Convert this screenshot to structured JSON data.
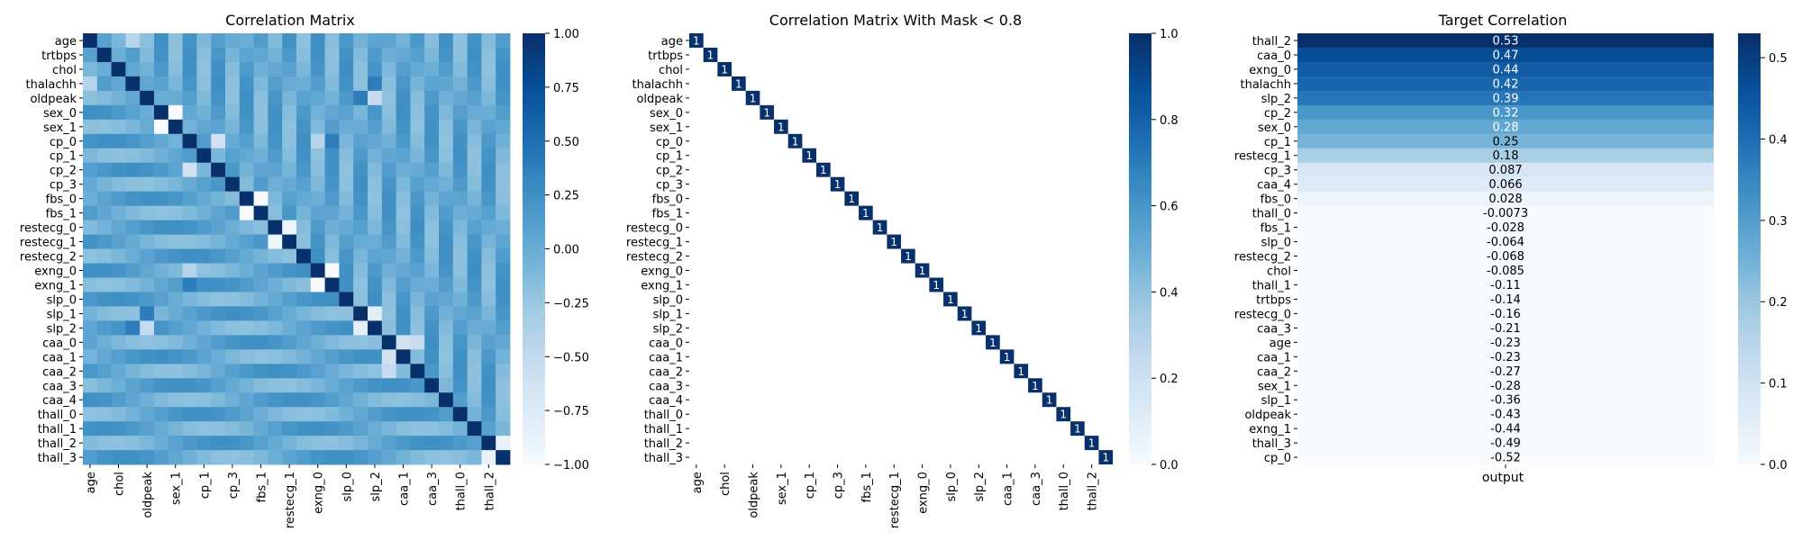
{
  "chart_data": [
    {
      "type": "heatmap",
      "title": "Correlation Matrix",
      "variables": [
        "age",
        "trtbps",
        "chol",
        "thalachh",
        "oldpeak",
        "sex_0",
        "sex_1",
        "cp_0",
        "cp_1",
        "cp_2",
        "cp_3",
        "fbs_0",
        "fbs_1",
        "restecg_0",
        "restecg_1",
        "restecg_2",
        "exng_0",
        "exng_1",
        "slp_0",
        "slp_1",
        "slp_2",
        "caa_0",
        "caa_1",
        "caa_2",
        "caa_3",
        "caa_4",
        "thall_0",
        "thall_1",
        "thall_2",
        "thall_3"
      ],
      "x_tick_labels": [
        "age",
        "chol",
        "oldpeak",
        "sex_1",
        "cp_1",
        "cp_3",
        "fbs_1",
        "restecg_1",
        "exng_0",
        "slp_0",
        "slp_2",
        "caa_1",
        "caa_3",
        "thall_0",
        "thall_2"
      ],
      "diagonal": 1,
      "off_diagonal_values": "estimated, mostly between -0.3 and 0.3; exact pairs listed in approx_pairs",
      "approx_pairs": [
        {
          "a": "sex_0",
          "b": "sex_1",
          "value": -1
        },
        {
          "a": "fbs_0",
          "b": "fbs_1",
          "value": -1
        },
        {
          "a": "restecg_0",
          "b": "restecg_1",
          "value": -0.9
        },
        {
          "a": "exng_0",
          "b": "exng_1",
          "value": -1
        },
        {
          "a": "slp_1",
          "b": "slp_2",
          "value": -0.8
        },
        {
          "a": "thall_2",
          "b": "thall_3",
          "value": -0.85
        },
        {
          "a": "cp_0",
          "b": "exng_1",
          "value": 0.4
        },
        {
          "a": "cp_0",
          "b": "exng_0",
          "value": -0.4
        },
        {
          "a": "cp_0",
          "b": "cp_2",
          "value": -0.6
        },
        {
          "a": "caa_0",
          "b": "caa_1",
          "value": -0.6
        },
        {
          "a": "caa_0",
          "b": "caa_2",
          "value": -0.5
        },
        {
          "a": "thalachh",
          "b": "slp_2",
          "value": 0.4
        },
        {
          "a": "oldpeak",
          "b": "slp_2",
          "value": -0.5
        },
        {
          "a": "oldpeak",
          "b": "slp_1",
          "value": 0.4
        },
        {
          "a": "thalachh",
          "b": "age",
          "value": -0.4
        }
      ],
      "colorbar": {
        "min": -1,
        "max": 1,
        "ticks": [
          "1.00",
          "0.75",
          "0.50",
          "0.25",
          "0.00",
          "−0.25",
          "−0.50",
          "−0.75",
          "−1.00"
        ]
      },
      "colormap": "Blues"
    },
    {
      "type": "heatmap",
      "title": "Correlation Matrix With Mask < 0.8",
      "variables": [
        "age",
        "trtbps",
        "chol",
        "thalachh",
        "oldpeak",
        "sex_0",
        "sex_1",
        "cp_0",
        "cp_1",
        "cp_2",
        "cp_3",
        "fbs_0",
        "fbs_1",
        "restecg_0",
        "restecg_1",
        "restecg_2",
        "exng_0",
        "exng_1",
        "slp_0",
        "slp_1",
        "slp_2",
        "caa_0",
        "caa_1",
        "caa_2",
        "caa_3",
        "caa_4",
        "thall_0",
        "thall_1",
        "thall_2",
        "thall_3"
      ],
      "x_tick_labels": [
        "age",
        "chol",
        "oldpeak",
        "sex_1",
        "cp_1",
        "cp_3",
        "fbs_1",
        "restecg_1",
        "exng_0",
        "slp_0",
        "slp_2",
        "caa_1",
        "caa_3",
        "thall_0",
        "thall_2"
      ],
      "cell_label": "1",
      "colorbar": {
        "min": 0,
        "max": 1,
        "ticks": [
          "1.0",
          "0.8",
          "0.6",
          "0.4",
          "0.2",
          "0.0"
        ]
      },
      "colormap": "Blues"
    },
    {
      "type": "heatmap",
      "title": "Target Correlation",
      "xlabel": "output",
      "rows": [
        {
          "label": "thall_2",
          "value": 0.53
        },
        {
          "label": "caa_0",
          "value": 0.47
        },
        {
          "label": "exng_0",
          "value": 0.44
        },
        {
          "label": "thalachh",
          "value": 0.42
        },
        {
          "label": "slp_2",
          "value": 0.39
        },
        {
          "label": "cp_2",
          "value": 0.32
        },
        {
          "label": "sex_0",
          "value": 0.28
        },
        {
          "label": "cp_1",
          "value": 0.25
        },
        {
          "label": "restecg_1",
          "value": 0.18
        },
        {
          "label": "cp_3",
          "value": 0.087
        },
        {
          "label": "caa_4",
          "value": 0.066
        },
        {
          "label": "fbs_0",
          "value": 0.028
        },
        {
          "label": "thall_0",
          "value": -0.0073
        },
        {
          "label": "fbs_1",
          "value": -0.028
        },
        {
          "label": "slp_0",
          "value": -0.064
        },
        {
          "label": "restecg_2",
          "value": -0.068
        },
        {
          "label": "chol",
          "value": -0.085
        },
        {
          "label": "thall_1",
          "value": -0.11
        },
        {
          "label": "trtbps",
          "value": -0.14
        },
        {
          "label": "restecg_0",
          "value": -0.16
        },
        {
          "label": "caa_3",
          "value": -0.21
        },
        {
          "label": "age",
          "value": -0.23
        },
        {
          "label": "caa_1",
          "value": -0.23
        },
        {
          "label": "caa_2",
          "value": -0.27
        },
        {
          "label": "sex_1",
          "value": -0.28
        },
        {
          "label": "slp_1",
          "value": -0.36
        },
        {
          "label": "oldpeak",
          "value": -0.43
        },
        {
          "label": "exng_1",
          "value": -0.44
        },
        {
          "label": "thall_3",
          "value": -0.49
        },
        {
          "label": "cp_0",
          "value": -0.52
        }
      ],
      "colorbar": {
        "min": 0,
        "max": 0.53,
        "ticks": [
          "0.5",
          "0.4",
          "0.3",
          "0.2",
          "0.1",
          "0.0"
        ],
        "tick_values": [
          0.5,
          0.4,
          0.3,
          0.2,
          0.1,
          0.0
        ]
      },
      "colormap": "Blues"
    }
  ]
}
